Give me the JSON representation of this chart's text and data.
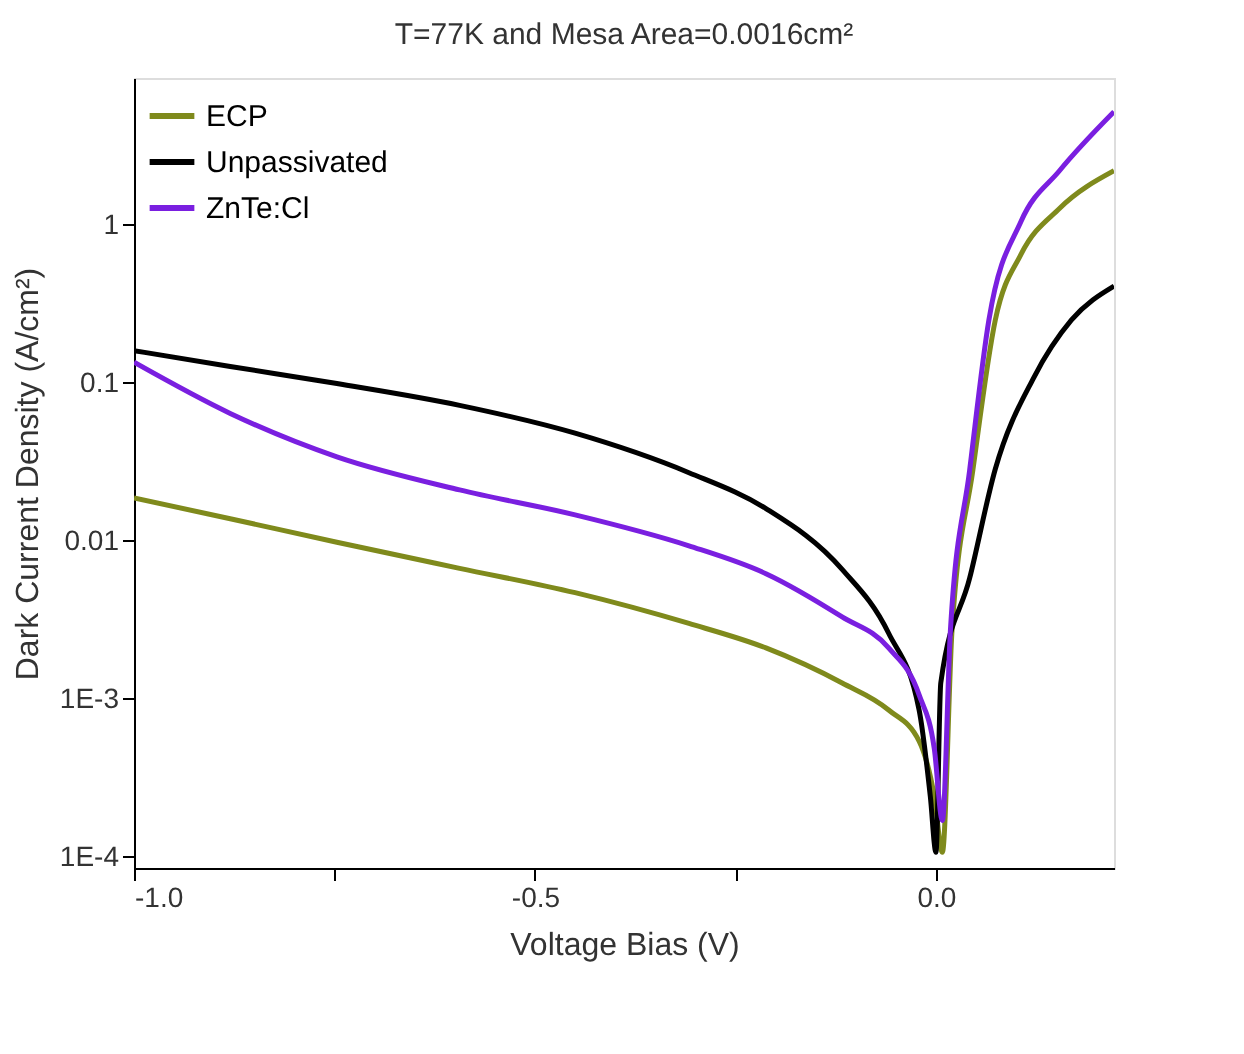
{
  "chart_data": {
    "type": "line",
    "title": "T=77K and Mesa Area=0.0016cm²",
    "xlabel": "Voltage Bias (V)",
    "ylabel": "Dark Current Density (A/cm²)",
    "xlim": [
      -1.0,
      0.222
    ],
    "ylim": [
      8.5e-05,
      8.5
    ],
    "log": "y",
    "grid": false,
    "legend": "top left",
    "marker": "none",
    "line_style": "solid",
    "xticks": [
      {
        "value": -1.0,
        "label": "-1.0"
      },
      {
        "value": -0.75,
        "label": null
      },
      {
        "value": -0.5,
        "label": "-0.5"
      },
      {
        "value": -0.25,
        "label": null
      },
      {
        "value": 0.0,
        "label": "0.0"
      }
    ],
    "yticks": [
      {
        "value": 0.0001,
        "label": "1E-4"
      },
      {
        "value": 0.001,
        "label": "1E-3"
      },
      0.01,
      0.1,
      1
    ],
    "series": [
      {
        "name": "ECP",
        "color": "#7f8a1c",
        "x": [
          -1.0,
          -0.88,
          -0.747,
          -0.594,
          -0.45,
          -0.308,
          -0.212,
          -0.117,
          -0.059,
          -0.021,
          -0.002,
          0.008,
          0.02,
          0.046,
          0.074,
          0.106,
          0.154,
          0.222
        ],
        "values": [
          0.0187,
          0.0138,
          0.0098,
          0.0067,
          0.0047,
          0.003,
          0.0021,
          0.00126,
          0.00085,
          0.00054,
          0.00024,
          0.000107,
          0.0027,
          0.028,
          0.25,
          0.65,
          1.27,
          2.2
        ]
      },
      {
        "name": "Unpassivated",
        "color": "#000000",
        "x": [
          -1.0,
          -0.88,
          -0.747,
          -0.594,
          -0.45,
          -0.308,
          -0.212,
          -0.117,
          -0.059,
          -0.021,
          -0.007,
          0.0,
          0.006,
          0.042,
          0.074,
          0.122,
          0.169,
          0.222
        ],
        "values": [
          0.16,
          0.127,
          0.099,
          0.072,
          0.048,
          0.027,
          0.016,
          0.0066,
          0.0026,
          0.00085,
          0.00024,
          0.000107,
          0.00126,
          0.0058,
          0.0285,
          0.108,
          0.25,
          0.41
        ]
      },
      {
        "name": "ZnTe:Cl",
        "color": "#7a1fe0",
        "x": [
          -1.0,
          -0.88,
          -0.747,
          -0.594,
          -0.45,
          -0.308,
          -0.212,
          -0.117,
          -0.059,
          -0.021,
          -0.002,
          0.008,
          0.018,
          0.042,
          0.066,
          0.106,
          0.154,
          0.222
        ],
        "values": [
          0.135,
          0.064,
          0.034,
          0.021,
          0.0146,
          0.0093,
          0.0062,
          0.0033,
          0.0021,
          0.00106,
          0.00048,
          0.00017,
          0.0027,
          0.028,
          0.25,
          1.05,
          2.2,
          5.2
        ]
      }
    ]
  }
}
